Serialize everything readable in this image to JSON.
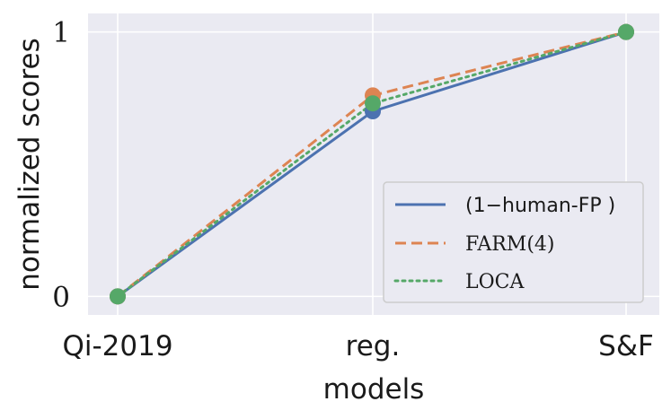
{
  "chart_data": {
    "type": "line",
    "title": "",
    "xlabel": "models",
    "ylabel": "normalized scores",
    "categories": [
      "Qi-2019",
      "reg.",
      "S&F"
    ],
    "ylim": [
      -0.07,
      1.07
    ],
    "yticks": [
      0,
      1
    ],
    "ytick_labels": [
      "0",
      "1"
    ],
    "grid": true,
    "legend_position": "lower-right",
    "series": [
      {
        "name": "(1−human-FP )",
        "color": "#4c72b0",
        "dash": "solid",
        "values": [
          0,
          0.7,
          1
        ]
      },
      {
        "name": "FARM(4)",
        "color": "#dd8452",
        "dash": "dashed",
        "values": [
          0,
          0.76,
          1
        ]
      },
      {
        "name": "LOCA",
        "color": "#55a868",
        "dash": "dotted",
        "values": [
          0,
          0.73,
          1
        ]
      }
    ]
  }
}
